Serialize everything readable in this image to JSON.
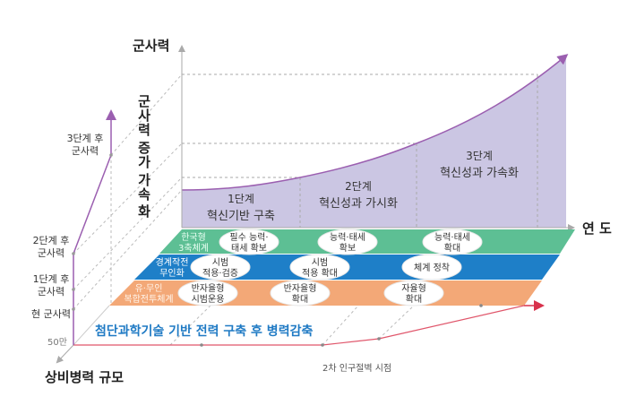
{
  "axes": {
    "y_label": "군사력",
    "x_label": "연 도",
    "depth_label": "상비병력 규모",
    "vertical_annotation": [
      "군",
      "사",
      "력",
      "증",
      "가",
      "가",
      "속",
      "화"
    ]
  },
  "left_axis_labels": {
    "stage3": [
      "3단계 후",
      "군사력"
    ],
    "stage2": [
      "2단계 후",
      "군사력"
    ],
    "stage1": [
      "1단계 후",
      "군사력"
    ],
    "current": "현 군사력",
    "base": "50만"
  },
  "stages": [
    {
      "name": "1단계",
      "title": "혁신기반 구축"
    },
    {
      "name": "2단계",
      "title": "혁신성과 가시화"
    },
    {
      "name": "3단계",
      "title": "혁신성과 가속화"
    }
  ],
  "bands": [
    {
      "label": [
        "한국형",
        "3축체계"
      ],
      "color": "#5dbf94",
      "items": [
        [
          "필수 능력·",
          "태세 확보"
        ],
        [
          "능력·태세",
          "확보"
        ],
        [
          "능력·태세",
          "확대"
        ]
      ]
    },
    {
      "label": [
        "경계작전",
        "무인화"
      ],
      "color": "#1e7fc8",
      "items": [
        [
          "시범",
          "적용·검증"
        ],
        [
          "시범",
          "적용 확대"
        ],
        [
          "체계 정착"
        ]
      ]
    },
    {
      "label": [
        "유·무인",
        "복합전투체계"
      ],
      "color": "#f3a877",
      "items": [
        [
          "반자율형",
          "시범운용"
        ],
        [
          "반자율형",
          "확대"
        ],
        [
          "자율형",
          "확대"
        ]
      ]
    }
  ],
  "floor_caption": "첨단과학기술 기반 전력 구축 후 병력감축",
  "timeline_note": "2차 인구절벽 시점",
  "colors": {
    "area": "#cbc6e3",
    "curve": "#9b5fb0",
    "baseline": "#e0566b",
    "caption": "#1f7ac4"
  }
}
